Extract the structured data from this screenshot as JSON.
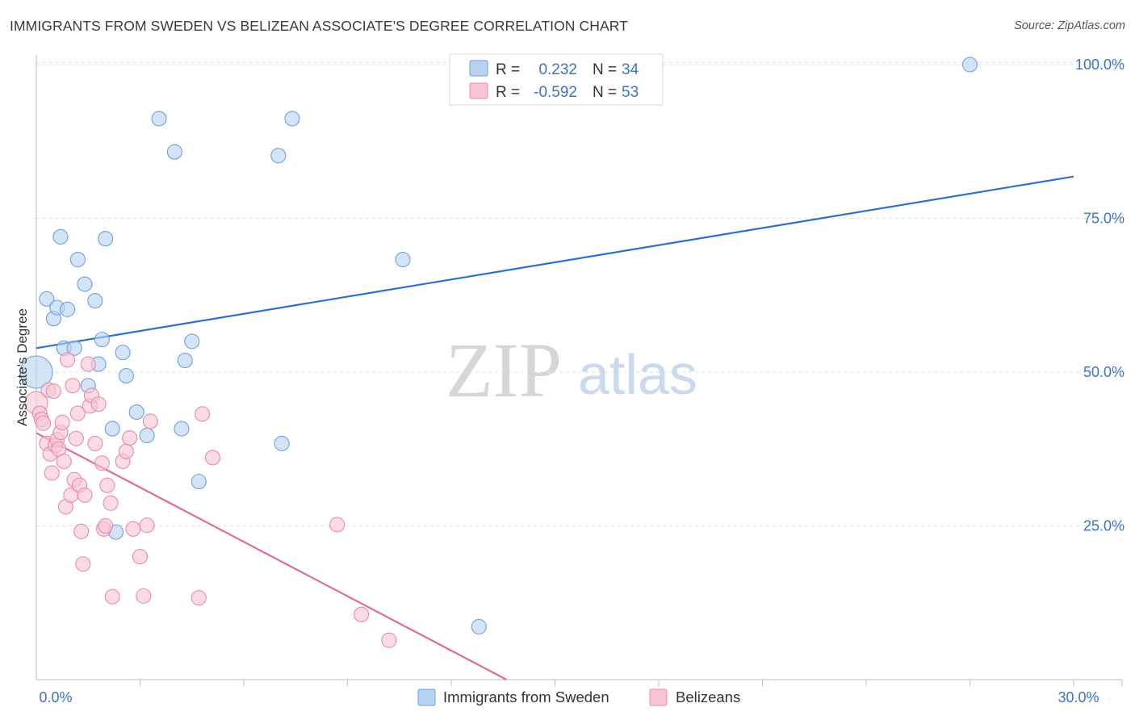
{
  "header": {
    "title": "IMMIGRANTS FROM SWEDEN VS BELIZEAN ASSOCIATE'S DEGREE CORRELATION CHART",
    "source": "Source: ZipAtlas.com"
  },
  "watermark": {
    "zip": "ZIP",
    "atlas": "atlas"
  },
  "legend": {
    "r_label": "R =",
    "n_label": "N =",
    "rows": [
      {
        "r": "0.232",
        "n": "34",
        "fill": "#b8d2f2",
        "stroke": "#6f9fde"
      },
      {
        "r": "-0.592",
        "n": "53",
        "fill": "#f8c4d5",
        "stroke": "#e88aa8"
      }
    ]
  },
  "bottom_legend": {
    "items": [
      {
        "label": "Immigrants from Sweden",
        "fill": "#b8d2f2",
        "stroke": "#6f9fde"
      },
      {
        "label": "Belizeans",
        "fill": "#f8c4d5",
        "stroke": "#e88aa8"
      }
    ]
  },
  "chart_data": {
    "type": "scatter",
    "title": "IMMIGRANTS FROM SWEDEN VS BELIZEAN ASSOCIATE'S DEGREE CORRELATION CHART",
    "xlabel": "",
    "ylabel": "Associate's Degree",
    "xlim": [
      0,
      30
    ],
    "ylim": [
      0,
      102
    ],
    "x_tick_labels": [
      {
        "value": 0,
        "label": "0.0%"
      },
      {
        "value": 30,
        "label": "30.0%"
      }
    ],
    "x_minor_ticks": [
      3,
      6,
      9,
      12,
      15,
      18,
      21,
      24,
      27,
      30
    ],
    "y_ticks": [
      {
        "value": 25,
        "label": "25.0%"
      },
      {
        "value": 50,
        "label": "50.0%"
      },
      {
        "value": 75,
        "label": "75.0%"
      },
      {
        "value": 100,
        "label": "100.0%"
      }
    ],
    "grid": true,
    "series": [
      {
        "name": "Immigrants from Sweden",
        "color": "#6f9fde",
        "fill": "#b8d2f2",
        "trend": {
          "x0": 0,
          "y0": 53.9,
          "x1": 30,
          "y1": 81.8,
          "color": "#2e6fcc"
        },
        "points": [
          [
            0.0,
            50.0,
            20
          ],
          [
            0.3,
            61.9,
            9
          ],
          [
            0.5,
            58.7,
            9
          ],
          [
            0.6,
            60.5,
            9
          ],
          [
            0.7,
            72.0,
            9
          ],
          [
            0.8,
            53.9,
            9
          ],
          [
            0.9,
            60.2,
            9
          ],
          [
            1.1,
            53.9,
            9
          ],
          [
            1.2,
            68.3,
            9
          ],
          [
            1.4,
            64.3,
            9
          ],
          [
            1.5,
            47.8,
            9
          ],
          [
            1.7,
            61.6,
            9
          ],
          [
            1.8,
            51.3,
            9
          ],
          [
            1.9,
            55.3,
            9
          ],
          [
            2.0,
            71.7,
            9
          ],
          [
            2.2,
            40.8,
            9
          ],
          [
            2.3,
            24.0,
            9
          ],
          [
            2.5,
            53.2,
            9
          ],
          [
            2.6,
            49.4,
            9
          ],
          [
            2.9,
            43.5,
            9
          ],
          [
            3.2,
            39.7,
            9
          ],
          [
            3.55,
            91.2,
            9
          ],
          [
            4.0,
            85.8,
            9
          ],
          [
            4.2,
            40.8,
            9
          ],
          [
            4.3,
            51.9,
            9
          ],
          [
            4.5,
            55.0,
            9
          ],
          [
            4.7,
            32.2,
            9
          ],
          [
            7.0,
            85.2,
            9
          ],
          [
            7.1,
            38.4,
            9
          ],
          [
            7.4,
            91.2,
            9
          ],
          [
            10.6,
            68.3,
            9
          ],
          [
            12.8,
            8.6,
            9
          ],
          [
            27.0,
            100.0,
            9
          ]
        ]
      },
      {
        "name": "Belizeans",
        "color": "#e88aa8",
        "fill": "#f8c4d5",
        "trend": {
          "x0": 0,
          "y0": 40.1,
          "x1": 13.6,
          "y1": 0,
          "color": "#e06b93"
        },
        "points": [
          [
            0.0,
            45.0,
            14
          ],
          [
            0.1,
            43.3,
            9
          ],
          [
            0.15,
            42.3,
            9
          ],
          [
            0.2,
            41.7,
            9
          ],
          [
            0.3,
            38.4,
            9
          ],
          [
            0.35,
            47.1,
            9
          ],
          [
            0.4,
            36.7,
            9
          ],
          [
            0.45,
            33.6,
            9
          ],
          [
            0.5,
            46.9,
            9
          ],
          [
            0.55,
            38.1,
            9
          ],
          [
            0.6,
            39.0,
            9
          ],
          [
            0.65,
            37.5,
            9
          ],
          [
            0.7,
            40.2,
            9
          ],
          [
            0.75,
            41.8,
            9
          ],
          [
            0.8,
            35.5,
            9
          ],
          [
            0.85,
            28.1,
            9
          ],
          [
            0.9,
            52.0,
            9
          ],
          [
            1.0,
            30.0,
            9
          ],
          [
            1.05,
            47.8,
            9
          ],
          [
            1.1,
            32.5,
            9
          ],
          [
            1.15,
            39.2,
            9
          ],
          [
            1.2,
            43.3,
            9
          ],
          [
            1.25,
            31.6,
            9
          ],
          [
            1.3,
            24.1,
            9
          ],
          [
            1.35,
            18.8,
            9
          ],
          [
            1.4,
            30.0,
            9
          ],
          [
            1.5,
            51.3,
            9
          ],
          [
            1.55,
            44.5,
            9
          ],
          [
            1.6,
            46.2,
            9
          ],
          [
            1.7,
            38.4,
            9
          ],
          [
            1.8,
            44.8,
            9
          ],
          [
            1.9,
            35.2,
            9
          ],
          [
            1.95,
            24.5,
            9
          ],
          [
            2.0,
            25.0,
            9
          ],
          [
            2.05,
            31.6,
            9
          ],
          [
            2.15,
            28.7,
            9
          ],
          [
            2.2,
            13.5,
            9
          ],
          [
            2.5,
            35.5,
            9
          ],
          [
            2.6,
            37.1,
            9
          ],
          [
            2.7,
            39.3,
            9
          ],
          [
            2.8,
            24.5,
            9
          ],
          [
            3.0,
            20.0,
            9
          ],
          [
            3.1,
            13.6,
            9
          ],
          [
            3.2,
            25.1,
            9
          ],
          [
            3.3,
            42.0,
            9
          ],
          [
            4.7,
            13.3,
            9
          ],
          [
            4.8,
            43.2,
            9
          ],
          [
            5.1,
            36.1,
            9
          ],
          [
            8.7,
            25.2,
            9
          ],
          [
            9.4,
            10.6,
            9
          ],
          [
            10.2,
            6.4,
            9
          ]
        ]
      }
    ]
  }
}
